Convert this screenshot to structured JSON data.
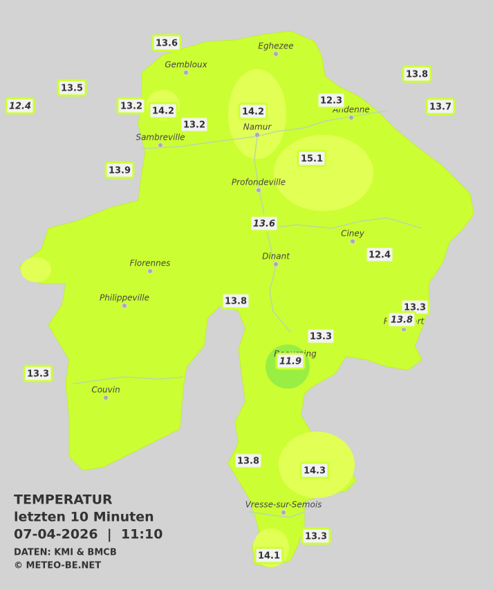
{
  "title": {
    "heading": "TEMPERATUR",
    "subtitle": "letzten 10 Minuten",
    "datetime": "07-04-2026  |  11:10",
    "source": "DATEN: KMI & BMCB",
    "copyright": "© METEO-BE.NET"
  },
  "cities": [
    "Eghezee",
    "Gembloux",
    "Andenne",
    "Namur",
    "Sambreville",
    "Profondeville",
    "Ciney",
    "Dinant",
    "Florennes",
    "Philippeville",
    "Rochefort",
    "Beauraing",
    "Couvin",
    "Vresse-sur-Semois"
  ],
  "stations": [
    {
      "value": 13.6,
      "italic": false
    },
    {
      "value": 13.5,
      "italic": false
    },
    {
      "value": 12.4,
      "italic": true
    },
    {
      "value": 13.2,
      "italic": false
    },
    {
      "value": 14.2,
      "italic": false
    },
    {
      "value": 13.2,
      "italic": false
    },
    {
      "value": 14.2,
      "italic": false
    },
    {
      "value": 12.3,
      "italic": false
    },
    {
      "value": 13.8,
      "italic": false
    },
    {
      "value": 13.7,
      "italic": false
    },
    {
      "value": 15.1,
      "italic": false
    },
    {
      "value": 13.9,
      "italic": false
    },
    {
      "value": 13.6,
      "italic": true
    },
    {
      "value": 12.4,
      "italic": false
    },
    {
      "value": 13.8,
      "italic": false
    },
    {
      "value": 13.3,
      "italic": false
    },
    {
      "value": 13.8,
      "italic": true
    },
    {
      "value": 13.3,
      "italic": false
    },
    {
      "value": 11.9,
      "italic": true
    },
    {
      "value": 13.3,
      "italic": false
    },
    {
      "value": 13.8,
      "italic": false
    },
    {
      "value": 14.3,
      "italic": false
    },
    {
      "value": 13.3,
      "italic": false
    },
    {
      "value": 14.1,
      "italic": false
    }
  ]
}
